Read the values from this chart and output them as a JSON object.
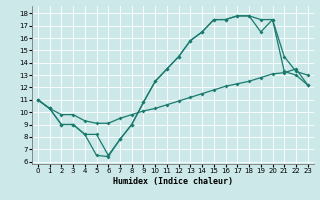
{
  "xlabel": "Humidex (Indice chaleur)",
  "xlim": [
    -0.5,
    23.5
  ],
  "ylim": [
    5.8,
    18.6
  ],
  "yticks": [
    6,
    7,
    8,
    9,
    10,
    11,
    12,
    13,
    14,
    15,
    16,
    17,
    18
  ],
  "xticks": [
    0,
    1,
    2,
    3,
    4,
    5,
    6,
    7,
    8,
    9,
    10,
    11,
    12,
    13,
    14,
    15,
    16,
    17,
    18,
    19,
    20,
    21,
    22,
    23
  ],
  "bg_color": "#cce8e8",
  "grid_color": "#ffffff",
  "line_color": "#1a7a6e",
  "line1_x": [
    0,
    1,
    2,
    3,
    4,
    5,
    6,
    7,
    8,
    9,
    10,
    11,
    12,
    13,
    14,
    15,
    16,
    17,
    18,
    19,
    20,
    21,
    22,
    23
  ],
  "line1_y": [
    11.0,
    10.3,
    9.8,
    9.8,
    9.3,
    9.1,
    9.1,
    9.5,
    9.8,
    10.1,
    10.3,
    10.6,
    10.9,
    11.2,
    11.5,
    11.8,
    12.1,
    12.3,
    12.5,
    12.8,
    13.1,
    13.2,
    13.5,
    12.2
  ],
  "line2_x": [
    0,
    1,
    2,
    3,
    4,
    5,
    6,
    7,
    8,
    9,
    10,
    11,
    12,
    13,
    14,
    15,
    16,
    17,
    18,
    19,
    20,
    21,
    22,
    23
  ],
  "line2_y": [
    11.0,
    10.3,
    9.0,
    9.0,
    8.2,
    6.5,
    6.4,
    7.8,
    9.0,
    10.8,
    12.5,
    13.5,
    14.5,
    15.8,
    16.5,
    17.5,
    17.5,
    17.8,
    17.8,
    17.5,
    17.5,
    14.5,
    13.3,
    13.0
  ],
  "line3_x": [
    0,
    1,
    2,
    3,
    4,
    5,
    6,
    7,
    8,
    9,
    10,
    11,
    12,
    13,
    14,
    15,
    16,
    17,
    18,
    19,
    20,
    21,
    22,
    23
  ],
  "line3_y": [
    11.0,
    10.3,
    9.0,
    9.0,
    8.2,
    8.2,
    6.5,
    7.8,
    9.0,
    10.8,
    12.5,
    13.5,
    14.5,
    15.8,
    16.5,
    17.5,
    17.5,
    17.8,
    17.8,
    16.5,
    17.5,
    13.3,
    13.0,
    12.2
  ]
}
